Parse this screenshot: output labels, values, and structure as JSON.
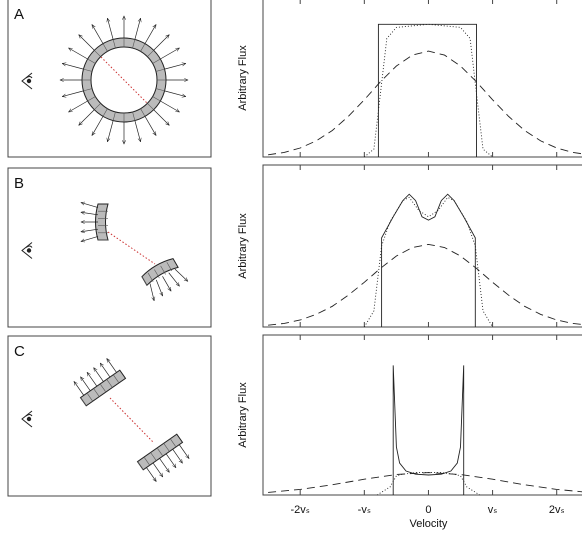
{
  "panels": [
    {
      "label": "A"
    },
    {
      "label": "B"
    },
    {
      "label": "C"
    }
  ],
  "chart_data": [
    {
      "type": "line",
      "ylabel": "Arbitrary Flux",
      "xlim": [
        -2.58,
        2.41
      ],
      "ylim": [
        0,
        1
      ],
      "xticks": [
        -2,
        -1,
        0,
        1,
        2
      ],
      "series": [
        {
          "dash": "solid",
          "x": [
            -0.78,
            -0.78,
            0.75,
            0.75
          ],
          "values": [
            0,
            0.84,
            0.84,
            0
          ]
        },
        {
          "dash": "dotted",
          "x": [
            -1,
            -0.85,
            -0.75,
            -0.65,
            -0.5,
            0,
            0.5,
            0.65,
            0.75,
            0.85,
            1
          ],
          "values": [
            0,
            0.05,
            0.4,
            0.75,
            0.82,
            0.84,
            0.82,
            0.75,
            0.4,
            0.05,
            0
          ]
        },
        {
          "dash": "dashed",
          "x": [
            -2.5,
            -2.25,
            -2,
            -1.75,
            -1.5,
            -1.25,
            -1,
            -0.75,
            -0.5,
            -0.25,
            0,
            0.25,
            0.5,
            0.75,
            1,
            1.25,
            1.5,
            1.75,
            2,
            2.25,
            2.5
          ],
          "values": [
            0.014,
            0.029,
            0.057,
            0.102,
            0.168,
            0.257,
            0.362,
            0.476,
            0.576,
            0.645,
            0.67,
            0.645,
            0.576,
            0.476,
            0.362,
            0.257,
            0.168,
            0.102,
            0.057,
            0.029,
            0.014
          ]
        }
      ]
    },
    {
      "type": "line",
      "ylabel": "Arbitrary Flux",
      "xlim": [
        -2.58,
        2.41
      ],
      "ylim": [
        0,
        1
      ],
      "xticks": [
        -2,
        -1,
        0,
        1,
        2
      ],
      "series": [
        {
          "dash": "solid",
          "x": [
            -0.73,
            -0.73,
            -0.55,
            -0.4,
            -0.3,
            -0.2,
            -0.1,
            0,
            0.1,
            0.2,
            0.3,
            0.4,
            0.55,
            0.73,
            0.73
          ],
          "values": [
            0,
            0.55,
            0.68,
            0.78,
            0.82,
            0.78,
            0.68,
            0.66,
            0.68,
            0.78,
            0.82,
            0.78,
            0.68,
            0.55,
            0
          ]
        },
        {
          "dash": "dotted",
          "x": [
            -1,
            -0.85,
            -0.73,
            -0.6,
            -0.4,
            -0.3,
            -0.15,
            0,
            0.15,
            0.3,
            0.4,
            0.6,
            0.73,
            0.85,
            1
          ],
          "values": [
            0,
            0.1,
            0.5,
            0.65,
            0.78,
            0.8,
            0.72,
            0.68,
            0.72,
            0.8,
            0.78,
            0.65,
            0.5,
            0.1,
            0
          ]
        },
        {
          "dash": "dashed",
          "x": [
            -2.5,
            -2.25,
            -2,
            -1.75,
            -1.5,
            -1.25,
            -1,
            -0.75,
            -0.5,
            -0.25,
            0,
            0.25,
            0.5,
            0.75,
            1,
            1.25,
            1.5,
            1.75,
            2,
            2.25,
            2.5
          ],
          "values": [
            0.011,
            0.022,
            0.043,
            0.078,
            0.128,
            0.196,
            0.276,
            0.362,
            0.438,
            0.491,
            0.51,
            0.491,
            0.438,
            0.362,
            0.276,
            0.196,
            0.128,
            0.078,
            0.043,
            0.022,
            0.011
          ]
        }
      ]
    },
    {
      "type": "line",
      "ylabel": "Arbitrary Flux",
      "xlabel": "Velocity",
      "xlim": [
        -2.58,
        2.41
      ],
      "ylim": [
        0,
        1
      ],
      "xticks": [
        {
          "value": -2,
          "label": "-2vₛ"
        },
        {
          "value": -1,
          "label": "-vₛ"
        },
        0,
        {
          "value": 1,
          "label": "vₛ"
        },
        {
          "value": 2,
          "label": "2vₛ"
        }
      ],
      "series": [
        {
          "dash": "solid",
          "x": [
            -0.55,
            -0.55,
            -0.5,
            -0.45,
            -0.35,
            -0.2,
            0,
            0.2,
            0.35,
            0.45,
            0.5,
            0.55,
            0.55
          ],
          "values": [
            0,
            0.81,
            0.3,
            0.2,
            0.15,
            0.13,
            0.125,
            0.13,
            0.15,
            0.2,
            0.3,
            0.81,
            0
          ]
        },
        {
          "dash": "dotted",
          "x": [
            -0.8,
            -0.6,
            -0.5,
            -0.4,
            -0.2,
            0,
            0.2,
            0.4,
            0.5,
            0.6,
            0.8
          ],
          "values": [
            0,
            0.05,
            0.12,
            0.13,
            0.14,
            0.14,
            0.14,
            0.13,
            0.12,
            0.05,
            0
          ]
        },
        {
          "dash": "dashed",
          "x": [
            -2.5,
            -2,
            -1.5,
            -1,
            -0.5,
            0,
            0.5,
            1,
            1.5,
            2,
            2.5
          ],
          "values": [
            0.016,
            0.035,
            0.064,
            0.099,
            0.128,
            0.14,
            0.128,
            0.099,
            0.064,
            0.035,
            0.016
          ]
        }
      ]
    }
  ]
}
